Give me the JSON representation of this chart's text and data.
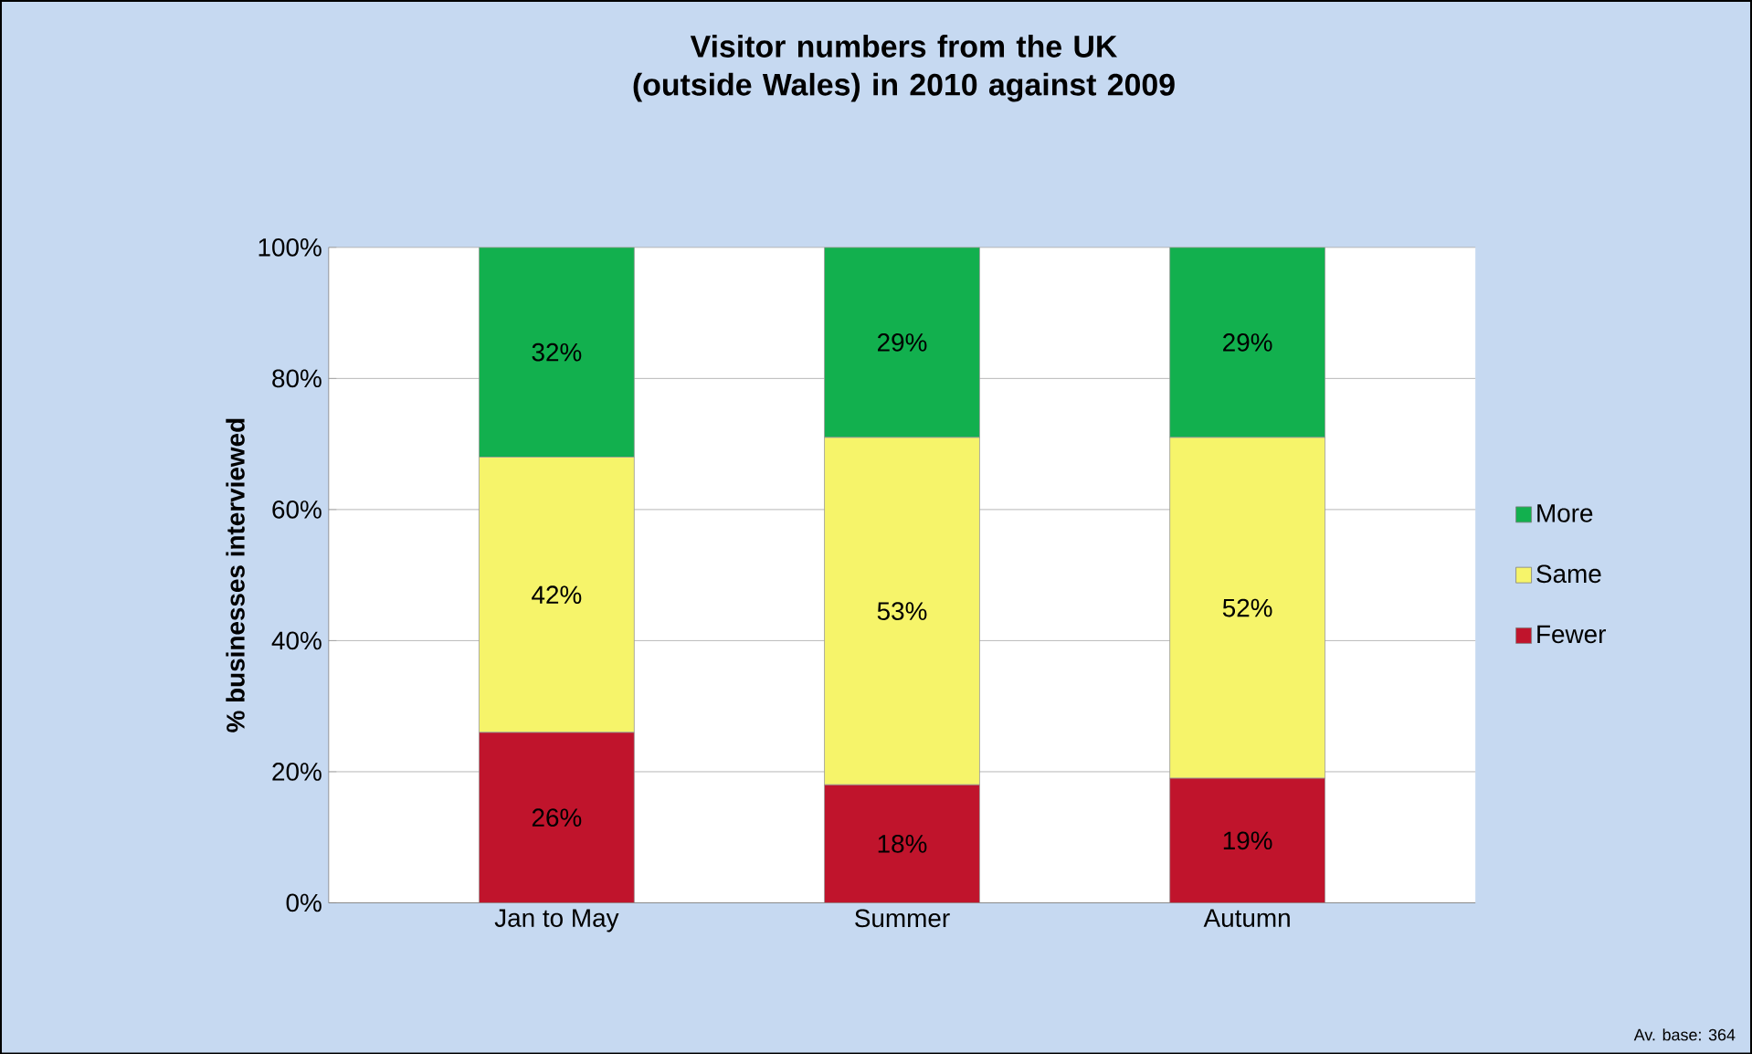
{
  "chart_data": {
    "type": "bar",
    "stacked": true,
    "title": "Visitor numbers from the UK (outside Wales) in 2010 against 2009",
    "ylabel": "% businesses interviewed",
    "categories": [
      "Jan to May",
      "Summer",
      "Autumn"
    ],
    "series": [
      {
        "name": "Fewer",
        "color": "#c0142c",
        "values": [
          26,
          18,
          19
        ],
        "value_labels": [
          "26%",
          "18%",
          "19%"
        ]
      },
      {
        "name": "Same",
        "color": "#f6f46a",
        "values": [
          42,
          53,
          52
        ],
        "value_labels": [
          "42%",
          "53%",
          "52%"
        ]
      },
      {
        "name": "More",
        "color": "#12b04e",
        "values": [
          32,
          29,
          29
        ],
        "value_labels": [
          "32%",
          "29%",
          "29%"
        ]
      }
    ],
    "ylim": [
      0,
      100
    ],
    "yticks": [
      {
        "value": 0,
        "label": "0%"
      },
      {
        "value": 20,
        "label": "20%"
      },
      {
        "value": 40,
        "label": "40%"
      },
      {
        "value": 60,
        "label": "60%"
      },
      {
        "value": 80,
        "label": "80%"
      },
      {
        "value": 100,
        "label": "100%"
      }
    ],
    "grid": "y",
    "legend": "right",
    "annotations": [
      "Av. base: 364"
    ]
  }
}
